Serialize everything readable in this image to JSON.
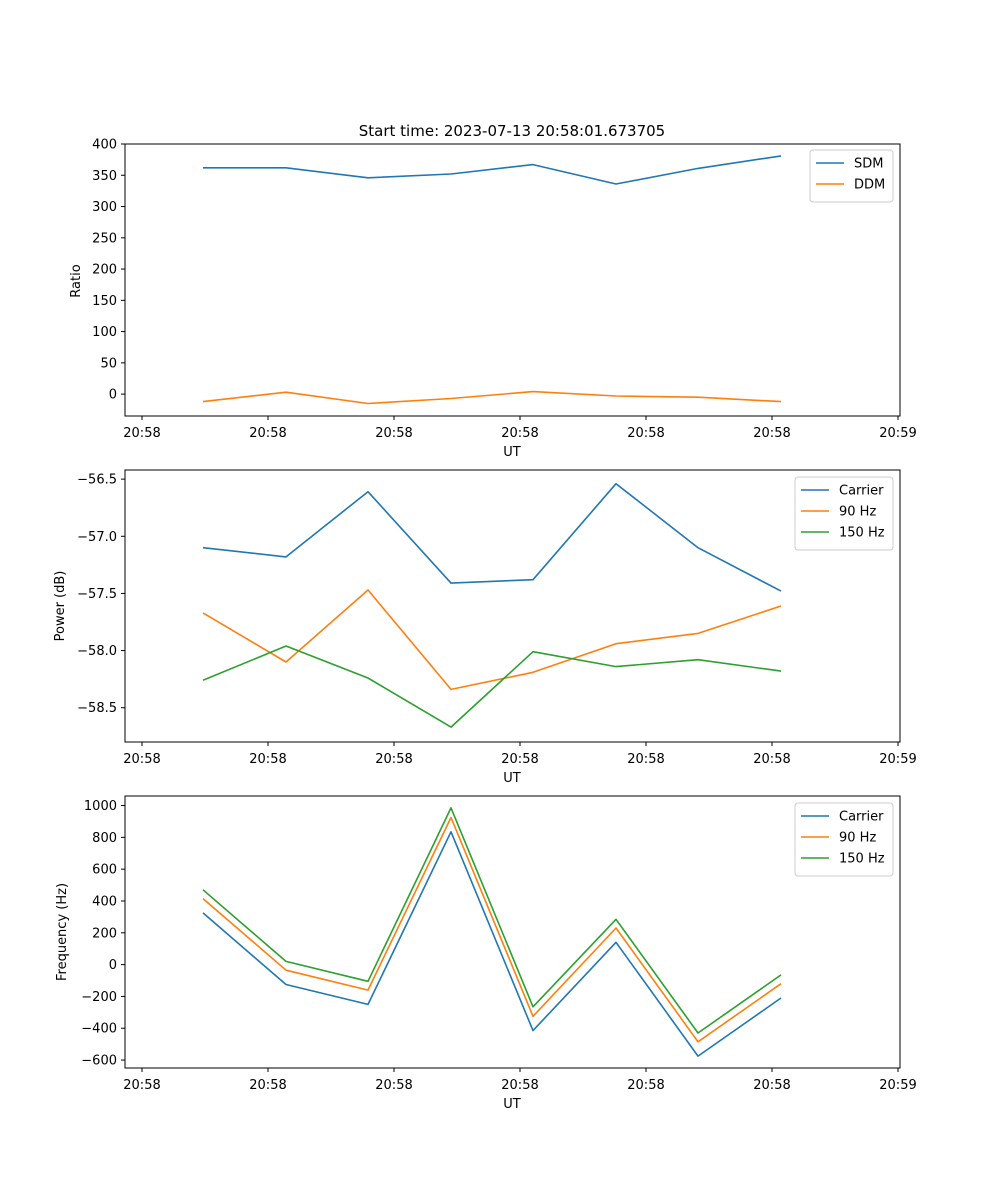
{
  "chart_data": [
    {
      "type": "line",
      "title": "Start time: 2023-07-13 20:58:01.673705",
      "xlabel": "UT",
      "ylabel": "Ratio",
      "x_ticks": [
        "20:58",
        "20:58",
        "20:58",
        "20:58",
        "20:58",
        "20:58",
        "20:59"
      ],
      "ylim": [
        -35,
        400
      ],
      "y_ticks": [
        0,
        50,
        100,
        150,
        200,
        250,
        300,
        350,
        400
      ],
      "legend_position": "top-right",
      "series": [
        {
          "name": "SDM",
          "color": "#1f77b4",
          "values": [
            362,
            362,
            346,
            352,
            367,
            336,
            361,
            381
          ]
        },
        {
          "name": "DDM",
          "color": "#ff7f0e",
          "values": [
            -12,
            3,
            -15,
            -7,
            4,
            -3,
            -5,
            -12
          ]
        }
      ]
    },
    {
      "type": "line",
      "title": "",
      "xlabel": "UT",
      "ylabel": "Power (dB)",
      "x_ticks": [
        "20:58",
        "20:58",
        "20:58",
        "20:58",
        "20:58",
        "20:58",
        "20:59"
      ],
      "ylim": [
        -58.8,
        -56.42
      ],
      "y_ticks": [
        -58.5,
        -58.0,
        -57.5,
        -57.0,
        -56.5
      ],
      "y_tick_labels": [
        "−58.5",
        "−58.0",
        "−57.5",
        "−57.0",
        "−56.5"
      ],
      "legend_position": "top-right",
      "series": [
        {
          "name": "Carrier",
          "color": "#1f77b4",
          "values": [
            -57.1,
            -57.18,
            -56.61,
            -57.41,
            -57.38,
            -56.54,
            -57.1,
            -57.48
          ]
        },
        {
          "name": "90 Hz",
          "color": "#ff7f0e",
          "values": [
            -57.67,
            -58.1,
            -57.47,
            -58.34,
            -58.19,
            -57.94,
            -57.85,
            -57.61
          ]
        },
        {
          "name": "150 Hz",
          "color": "#2ca02c",
          "values": [
            -58.26,
            -57.96,
            -58.24,
            -58.67,
            -58.01,
            -58.14,
            -58.08,
            -58.18
          ]
        }
      ]
    },
    {
      "type": "line",
      "title": "",
      "xlabel": "UT",
      "ylabel": "Frequency (Hz)",
      "x_ticks": [
        "20:58",
        "20:58",
        "20:58",
        "20:58",
        "20:58",
        "20:58",
        "20:59"
      ],
      "ylim": [
        -650,
        1060
      ],
      "y_ticks": [
        -600,
        -400,
        -200,
        0,
        200,
        400,
        600,
        800,
        1000
      ],
      "y_tick_labels": [
        "−600",
        "−400",
        "−200",
        "0",
        "200",
        "400",
        "600",
        "800",
        "1000"
      ],
      "legend_position": "top-right",
      "series": [
        {
          "name": "Carrier",
          "color": "#1f77b4",
          "values": [
            325,
            -125,
            -250,
            835,
            -415,
            140,
            -575,
            -210
          ]
        },
        {
          "name": "90 Hz",
          "color": "#ff7f0e",
          "values": [
            415,
            -35,
            -160,
            925,
            -325,
            230,
            -485,
            -120
          ]
        },
        {
          "name": "150 Hz",
          "color": "#2ca02c",
          "values": [
            470,
            20,
            -105,
            985,
            -265,
            285,
            -430,
            -65
          ]
        }
      ]
    }
  ]
}
